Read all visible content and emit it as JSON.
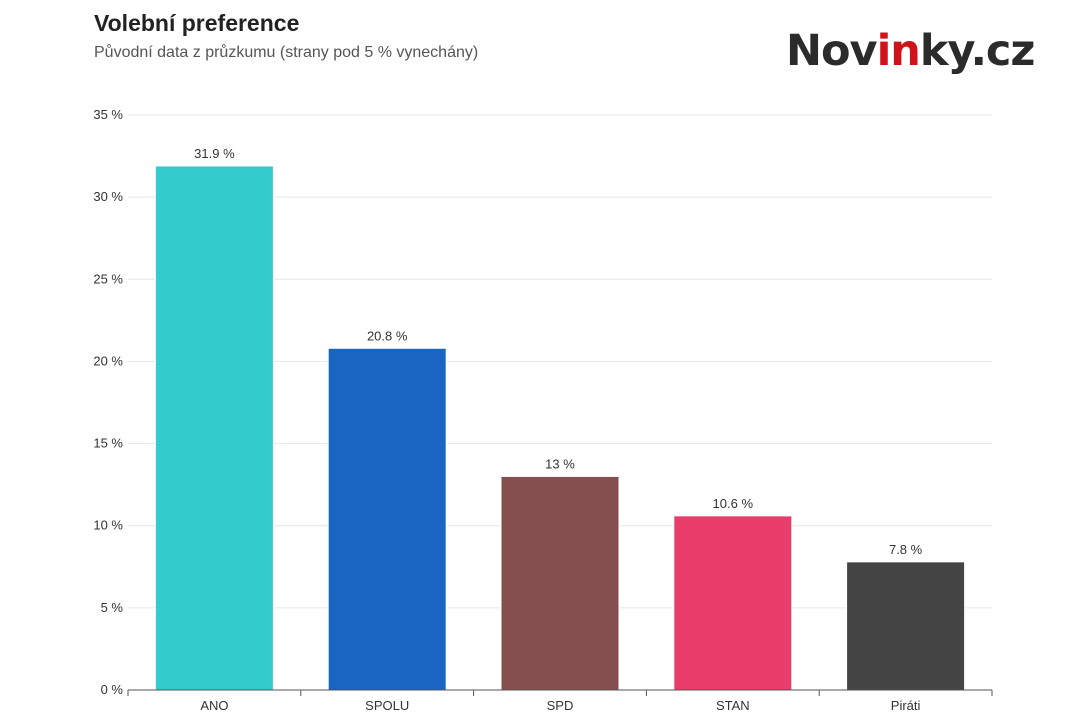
{
  "header": {
    "title": "Volební preference",
    "subtitle": "Původní data z průzkumu (strany pod 5 % vynechány)"
  },
  "brand": {
    "prefix": "Nov",
    "accent": "in",
    "suffix": "ky.cz",
    "accent_color": "#d0121b"
  },
  "chart_data": {
    "type": "bar",
    "title": "Volební preference",
    "subtitle": "Původní data z průzkumu (strany pod 5 % vynechány)",
    "categories": [
      "ANO",
      "SPOLU",
      "SPD",
      "STAN",
      "Piráti"
    ],
    "values": [
      31.9,
      20.8,
      13,
      10.6,
      7.8
    ],
    "data_labels": [
      "31.9 %",
      "20.8 %",
      "13 %",
      "10.6 %",
      "7.8 %"
    ],
    "colors": [
      "#33cccc",
      "#1a64c2",
      "#854f4f",
      "#e83c6a",
      "#444444"
    ],
    "ylim": [
      0,
      35
    ],
    "yticks": [
      0,
      5,
      10,
      15,
      20,
      25,
      30,
      35
    ],
    "ytick_labels": [
      "0 %",
      "5 %",
      "10 %",
      "15 %",
      "20 %",
      "25 %",
      "30 %",
      "35 %"
    ],
    "grid": true,
    "legend": "none",
    "xlabel": "",
    "ylabel": ""
  }
}
